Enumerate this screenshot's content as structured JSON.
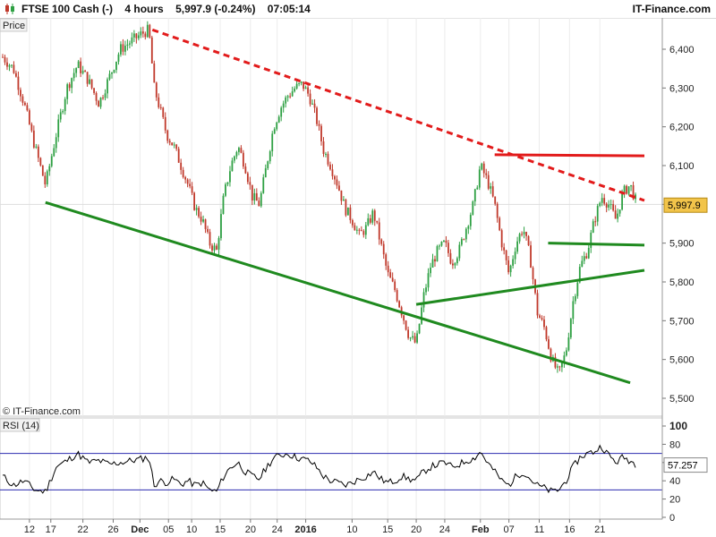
{
  "header": {
    "instrument": "FTSE 100 Cash (-)",
    "timeframe": "4 hours",
    "last_price": "5,997.9 (-0.24%)",
    "time": "07:05:14",
    "brand": "IT-Finance.com"
  },
  "price_panel": {
    "label": "Price",
    "watermark": "© IT-Finance.com",
    "current_price_label": "5,997.9"
  },
  "rsi_panel": {
    "label": "RSI (14)",
    "current_value_label": "57.257"
  },
  "colors": {
    "up_candle": "#2ea043",
    "down_candle": "#c0392b",
    "resistance_dashed": "#e21b1b",
    "horizontal_resistance": "#e21b1b",
    "support_lines": "#1f8a1f",
    "rsi_line": "#000000",
    "rsi_band_lines": "#2b2bb0",
    "price_tag_bg": "#f2c44a"
  },
  "chart_data": [
    {
      "type": "candlestick",
      "title": "",
      "ylabel": "Price",
      "ylim": [
        5450,
        6480
      ],
      "yticks": [
        6400,
        6300,
        6200,
        6100,
        6000,
        5900,
        5800,
        5700,
        5600,
        5500
      ],
      "ytick_labels": [
        "6,400",
        "6,300",
        "6,200",
        "6,100",
        "6,000",
        "5,900",
        "5,800",
        "5,700",
        "5,600",
        "5,500"
      ],
      "xtick_labels": [
        "12",
        "17",
        "22",
        "26",
        "Dec",
        "05",
        "10",
        "15",
        "20",
        "24",
        "2016",
        "10",
        "15",
        "20",
        "24",
        "Feb",
        "07",
        "11",
        "16",
        "21"
      ],
      "last_price": 5997.9,
      "close_series": [
        [
          0,
          6380
        ],
        [
          6,
          6350
        ],
        [
          12,
          6260
        ],
        [
          18,
          6150
        ],
        [
          24,
          6050
        ],
        [
          30,
          6180
        ],
        [
          36,
          6300
        ],
        [
          42,
          6360
        ],
        [
          48,
          6320
        ],
        [
          54,
          6260
        ],
        [
          60,
          6330
        ],
        [
          66,
          6400
        ],
        [
          72,
          6420
        ],
        [
          78,
          6440
        ],
        [
          82,
          6450
        ],
        [
          85,
          6300
        ],
        [
          88,
          6250
        ],
        [
          92,
          6180
        ],
        [
          96,
          6150
        ],
        [
          100,
          6100
        ],
        [
          104,
          6050
        ],
        [
          108,
          5990
        ],
        [
          112,
          5960
        ],
        [
          116,
          5900
        ],
        [
          120,
          5880
        ],
        [
          124,
          6020
        ],
        [
          128,
          6100
        ],
        [
          132,
          6150
        ],
        [
          136,
          6100
        ],
        [
          140,
          6020
        ],
        [
          144,
          6000
        ],
        [
          148,
          6100
        ],
        [
          152,
          6200
        ],
        [
          156,
          6250
        ],
        [
          160,
          6280
        ],
        [
          164,
          6300
        ],
        [
          168,
          6310
        ],
        [
          172,
          6280
        ],
        [
          176,
          6220
        ],
        [
          180,
          6140
        ],
        [
          184,
          6100
        ],
        [
          188,
          6050
        ],
        [
          192,
          5990
        ],
        [
          196,
          5960
        ],
        [
          200,
          5920
        ],
        [
          204,
          5940
        ],
        [
          208,
          5980
        ],
        [
          212,
          5900
        ],
        [
          216,
          5820
        ],
        [
          220,
          5780
        ],
        [
          224,
          5720
        ],
        [
          228,
          5660
        ],
        [
          232,
          5640
        ],
        [
          236,
          5760
        ],
        [
          240,
          5840
        ],
        [
          244,
          5880
        ],
        [
          248,
          5900
        ],
        [
          252,
          5850
        ],
        [
          256,
          5880
        ],
        [
          260,
          5940
        ],
        [
          264,
          6000
        ],
        [
          268,
          6100
        ],
        [
          272,
          6060
        ],
        [
          276,
          6000
        ],
        [
          280,
          5900
        ],
        [
          284,
          5820
        ],
        [
          288,
          5900
        ],
        [
          292,
          5940
        ],
        [
          296,
          5860
        ],
        [
          300,
          5720
        ],
        [
          304,
          5680
        ],
        [
          308,
          5600
        ],
        [
          312,
          5560
        ],
        [
          316,
          5620
        ],
        [
          320,
          5750
        ],
        [
          324,
          5840
        ],
        [
          328,
          5880
        ],
        [
          332,
          5960
        ],
        [
          336,
          6020
        ],
        [
          340,
          6000
        ],
        [
          344,
          5960
        ],
        [
          348,
          6030
        ],
        [
          352,
          6050
        ],
        [
          356,
          5997.9
        ]
      ],
      "trendlines": [
        {
          "name": "descending resistance (dashed)",
          "from": [
            84,
            6450
          ],
          "to": [
            360,
            6010
          ],
          "style": "dashed"
        },
        {
          "name": "horizontal resistance",
          "from": [
            276,
            6128
          ],
          "to": [
            360,
            6125
          ],
          "style": "solid"
        },
        {
          "name": "lower support channel",
          "from": [
            24,
            6005
          ],
          "to": [
            352,
            5540
          ],
          "style": "solid"
        },
        {
          "name": "rising support",
          "from": [
            232,
            5742
          ],
          "to": [
            360,
            5830
          ],
          "style": "solid"
        },
        {
          "name": "short horizontal support",
          "from": [
            306,
            5900
          ],
          "to": [
            360,
            5895
          ],
          "style": "solid"
        }
      ]
    },
    {
      "type": "line",
      "title": "RSI (14)",
      "ylim": [
        0,
        100
      ],
      "yticks": [
        100,
        80,
        60,
        40,
        20,
        0
      ],
      "ytick_labels": [
        "100",
        "80",
        "60",
        "40",
        "20",
        "0"
      ],
      "overbought": 70,
      "oversold": 30,
      "last_value": 57.257,
      "values": [
        [
          0,
          45
        ],
        [
          6,
          35
        ],
        [
          12,
          40
        ],
        [
          18,
          30
        ],
        [
          24,
          28
        ],
        [
          30,
          55
        ],
        [
          36,
          62
        ],
        [
          42,
          70
        ],
        [
          48,
          60
        ],
        [
          54,
          62
        ],
        [
          60,
          58
        ],
        [
          66,
          60
        ],
        [
          72,
          62
        ],
        [
          78,
          64
        ],
        [
          82,
          66
        ],
        [
          85,
          35
        ],
        [
          88,
          40
        ],
        [
          92,
          38
        ],
        [
          96,
          42
        ],
        [
          100,
          36
        ],
        [
          104,
          40
        ],
        [
          108,
          35
        ],
        [
          112,
          38
        ],
        [
          116,
          30
        ],
        [
          120,
          28
        ],
        [
          124,
          45
        ],
        [
          128,
          55
        ],
        [
          132,
          60
        ],
        [
          136,
          50
        ],
        [
          140,
          45
        ],
        [
          144,
          42
        ],
        [
          148,
          55
        ],
        [
          152,
          65
        ],
        [
          156,
          68
        ],
        [
          160,
          70
        ],
        [
          164,
          66
        ],
        [
          168,
          64
        ],
        [
          172,
          62
        ],
        [
          176,
          55
        ],
        [
          180,
          45
        ],
        [
          184,
          40
        ],
        [
          188,
          38
        ],
        [
          192,
          35
        ],
        [
          196,
          38
        ],
        [
          200,
          42
        ],
        [
          204,
          45
        ],
        [
          208,
          50
        ],
        [
          212,
          42
        ],
        [
          216,
          38
        ],
        [
          220,
          40
        ],
        [
          224,
          45
        ],
        [
          228,
          42
        ],
        [
          232,
          40
        ],
        [
          236,
          50
        ],
        [
          240,
          55
        ],
        [
          244,
          58
        ],
        [
          248,
          60
        ],
        [
          252,
          55
        ],
        [
          256,
          58
        ],
        [
          260,
          62
        ],
        [
          264,
          64
        ],
        [
          268,
          72
        ],
        [
          272,
          60
        ],
        [
          276,
          50
        ],
        [
          280,
          40
        ],
        [
          284,
          35
        ],
        [
          288,
          45
        ],
        [
          292,
          50
        ],
        [
          296,
          42
        ],
        [
          300,
          35
        ],
        [
          304,
          32
        ],
        [
          308,
          28
        ],
        [
          312,
          30
        ],
        [
          316,
          40
        ],
        [
          320,
          55
        ],
        [
          324,
          66
        ],
        [
          328,
          70
        ],
        [
          332,
          72
        ],
        [
          336,
          78
        ],
        [
          340,
          68
        ],
        [
          344,
          60
        ],
        [
          348,
          66
        ],
        [
          352,
          62
        ],
        [
          356,
          57.257
        ]
      ]
    }
  ]
}
